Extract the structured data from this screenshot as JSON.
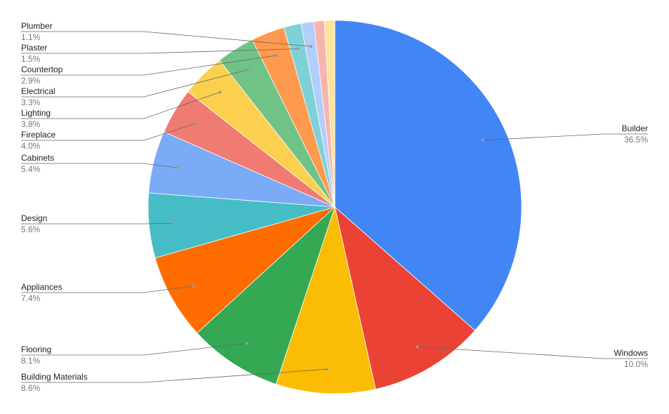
{
  "chart_data": {
    "type": "pie",
    "categories": [
      "Builder",
      "Windows",
      "Building Materials",
      "Flooring",
      "Appliances",
      "Design",
      "Cabinets",
      "Fireplace",
      "Lighting",
      "Electrical",
      "Countertop",
      "Plaster",
      "Plumber",
      null,
      null
    ],
    "values": [
      36.5,
      10.0,
      8.6,
      8.1,
      7.4,
      5.6,
      5.4,
      4.0,
      3.8,
      3.3,
      2.9,
      1.5,
      1.1,
      0.9,
      0.9
    ],
    "value_labels": [
      "36.5%",
      "10.0%",
      "8.6%",
      "8.1%",
      "7.4%",
      "5.6%",
      "5.4%",
      "4.0%",
      "3.8%",
      "3.3%",
      "2.9%",
      "1.5%",
      "1.1%",
      null,
      null
    ],
    "colors": [
      "#4285f4",
      "#ea4335",
      "#fbbc04",
      "#34a853",
      "#ff6d01",
      "#46bdc6",
      "#7baaf7",
      "#f07b72",
      "#fcd04f",
      "#71c287",
      "#ff994d",
      "#7ed1d7",
      "#b3cefb",
      "#f7b4ae",
      "#fde49b"
    ]
  }
}
